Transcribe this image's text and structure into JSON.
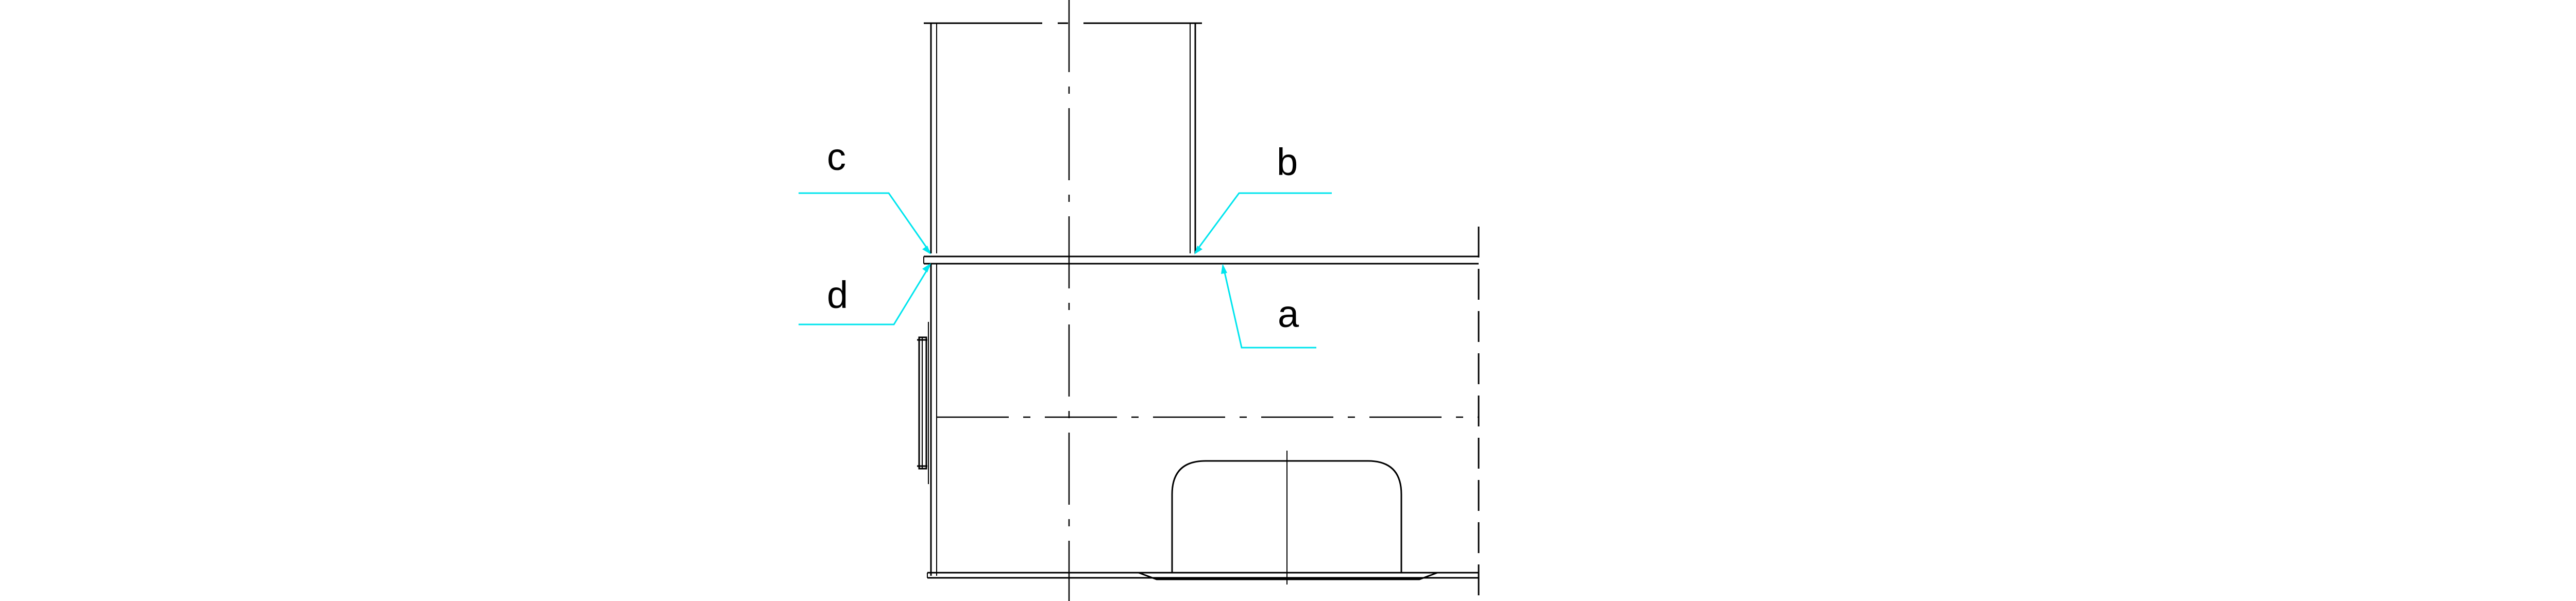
{
  "drawing": {
    "colors": {
      "line": "#000000",
      "leader": "#00e5ee",
      "background": "#ffffff"
    },
    "labels": {
      "a": "a",
      "b": "b",
      "c": "c",
      "d": "d"
    }
  }
}
